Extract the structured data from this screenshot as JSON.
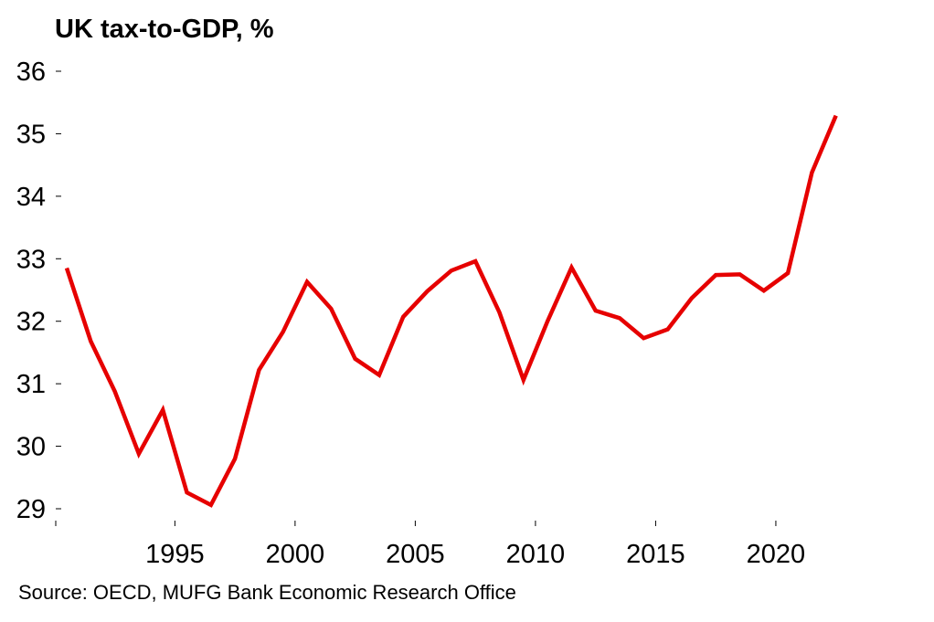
{
  "chart_data": {
    "type": "line",
    "title": "UK tax-to-GDP, %",
    "source": "Source: OECD, MUFG Bank Economic Research Office",
    "xlabel": "",
    "ylabel": "",
    "xlim": [
      1990.5,
      2023.5
    ],
    "ylim": [
      29,
      36
    ],
    "yticks": [
      29,
      30,
      31,
      32,
      33,
      34,
      35,
      36
    ],
    "ytick_labels": [
      "29",
      "30",
      "31",
      "32",
      "33",
      "34",
      "35",
      "36"
    ],
    "xticks": [
      1995,
      2000,
      2005,
      2010,
      2015,
      2020
    ],
    "xtick_labels": [
      "1995",
      "2000",
      "2005",
      "2010",
      "2015",
      "2020"
    ],
    "grid": false,
    "line_color": "#e60000",
    "series": [
      {
        "x": [
          1990.5,
          1991.5,
          1992.5,
          1993.5,
          1994.5,
          1995.5,
          1996.5,
          1997.5,
          1998.5,
          1999.5,
          2000.5,
          2001.5,
          2002.5,
          2003.5,
          2004.5,
          2005.5,
          2006.5,
          2007.5,
          2008.5,
          2009.5,
          2010.5,
          2011.5,
          2012.5,
          2013.5,
          2014.5,
          2015.5,
          2016.5,
          2017.5,
          2018.5,
          2019.5,
          2020.5,
          2021.5,
          2022.5
        ],
        "values": [
          32.85,
          31.68,
          30.88,
          29.88,
          30.58,
          29.26,
          29.06,
          29.8,
          31.22,
          31.83,
          32.63,
          32.2,
          31.4,
          31.14,
          32.07,
          32.48,
          32.81,
          32.96,
          32.14,
          31.06,
          32.0,
          32.86,
          32.17,
          32.05,
          31.73,
          31.87,
          32.37,
          32.74,
          32.75,
          32.49,
          32.77,
          34.38,
          35.29
        ]
      }
    ]
  }
}
